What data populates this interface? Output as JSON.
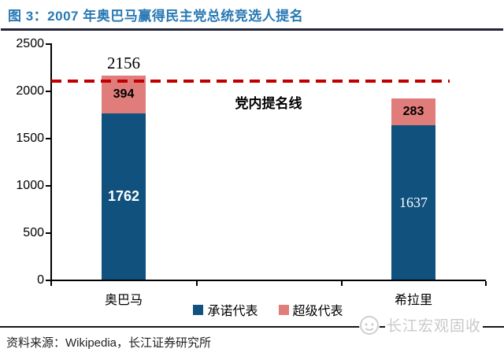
{
  "header": {
    "title": "图 3：2007 年奥巴马赢得民主党总统竞选人提名"
  },
  "chart_data": {
    "type": "bar",
    "stacked": true,
    "title": "图 3：2007 年奥巴马赢得民主党总统竞选人提名",
    "categories": [
      "奥巴马",
      "希拉里"
    ],
    "series": [
      {
        "name": "承诺代表",
        "color": "#10517e",
        "values": [
          1762,
          1637
        ]
      },
      {
        "name": "超级代表",
        "color": "#e07d7b",
        "values": [
          394,
          283
        ]
      }
    ],
    "totals": [
      2156,
      null
    ],
    "threshold_line": {
      "label": "党内提名线",
      "value": 2100,
      "color": "#c00000",
      "style": "dashed"
    },
    "ylim": [
      0,
      2500
    ],
    "yticks": [
      "0",
      "500",
      "1000",
      "1500",
      "2000",
      "2500"
    ],
    "grid": false,
    "legend_position": "bottom-center"
  },
  "footer": {
    "source": "资料来源：Wikipedia，长江证券研究所",
    "watermark": "长江宏观固收"
  },
  "colors": {
    "title_blue": "#2878b4",
    "pledged_blue": "#10517e",
    "super_pink": "#e07d7b",
    "threshold_red": "#c00000",
    "watermark_gray": "#c9c9c9"
  }
}
